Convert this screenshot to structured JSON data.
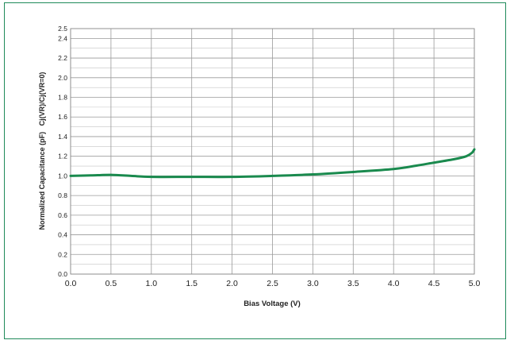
{
  "chart_data": {
    "type": "line",
    "title": "",
    "xlabel": "Bias Voltage (V)",
    "ylabel": "Normalized Capacitance (pF)   Cj(VR)/Cj(VR=0)",
    "xlim": [
      0,
      5
    ],
    "ylim": [
      0,
      2.5
    ],
    "x_ticks": [
      "0.0",
      "0.5",
      "1.0",
      "1.5",
      "2.0",
      "2.5",
      "3.0",
      "3.5",
      "4.0",
      "4.5",
      "5.0"
    ],
    "y_ticks": [
      "0.0",
      "0.2",
      "0.4",
      "0.6",
      "0.8",
      "1.0",
      "1.2",
      "1.4",
      "1.6",
      "1.8",
      "2.0",
      "2.2",
      "2.4",
      "2.5"
    ],
    "grid": true,
    "series": [
      {
        "color": "#1a8a4e",
        "x": [
          0.0,
          0.25,
          0.5,
          0.75,
          1.0,
          1.5,
          2.0,
          2.5,
          3.0,
          3.5,
          4.0,
          4.25,
          4.5,
          4.75,
          4.9,
          4.97,
          5.0
        ],
        "y": [
          1.0,
          1.005,
          1.01,
          1.0,
          0.99,
          0.99,
          0.99,
          1.0,
          1.015,
          1.04,
          1.07,
          1.1,
          1.135,
          1.17,
          1.2,
          1.235,
          1.27
        ]
      }
    ]
  }
}
